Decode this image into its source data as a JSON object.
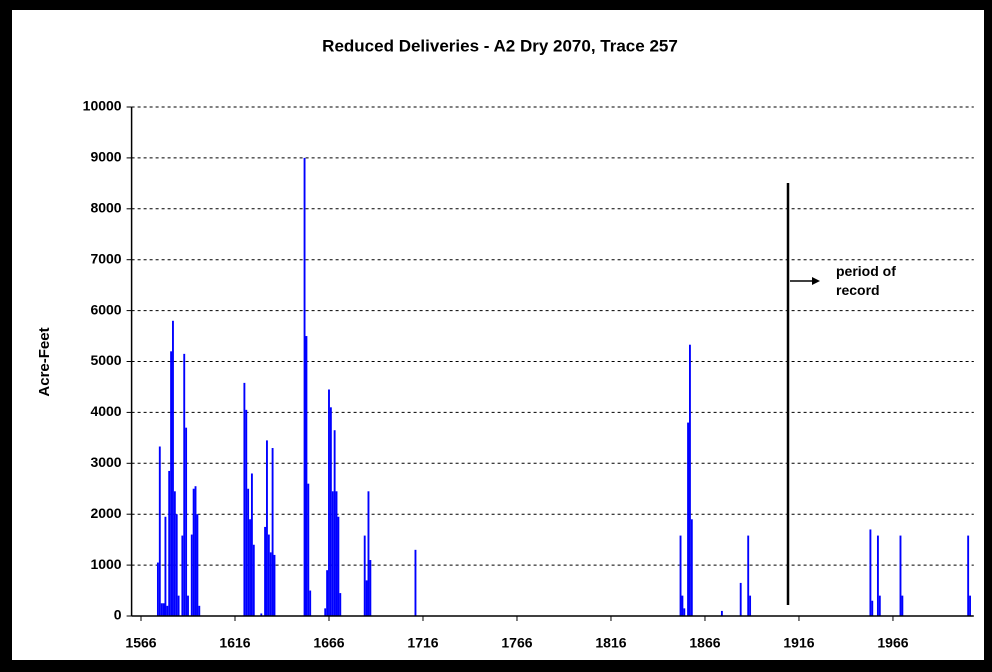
{
  "chart_data": {
    "type": "bar",
    "title": "Reduced Deliveries - A2 Dry 2070, Trace 257",
    "y_label": "Acre-Feet",
    "annotation": "period of record",
    "color": "#0000ff",
    "x": [
      1575,
      1576,
      1577,
      1578,
      1579,
      1580,
      1581,
      1582,
      1583,
      1584,
      1585,
      1586,
      1588,
      1589,
      1590,
      1591,
      1593,
      1594,
      1595,
      1596,
      1597,
      1621,
      1622,
      1623,
      1624,
      1625,
      1626,
      1630,
      1632,
      1633,
      1634,
      1635,
      1636,
      1637,
      1653,
      1654,
      1655,
      1656,
      1664,
      1665,
      1666,
      1667,
      1668,
      1669,
      1670,
      1671,
      1672,
      1685,
      1686,
      1687,
      1688,
      1712,
      1853,
      1854,
      1855,
      1857,
      1858,
      1859,
      1875,
      1885,
      1889,
      1890,
      1954,
      1955,
      1958,
      1959,
      1970,
      1971,
      2006,
      2007
    ],
    "values": [
      1050,
      3330,
      250,
      250,
      1950,
      200,
      2850,
      5200,
      5800,
      2450,
      2000,
      400,
      1580,
      5150,
      3700,
      400,
      1600,
      2500,
      2550,
      2000,
      200,
      4580,
      4050,
      2500,
      1900,
      2800,
      1400,
      50,
      1750,
      3450,
      1600,
      1250,
      3300,
      1200,
      9000,
      5500,
      2600,
      500,
      150,
      900,
      4450,
      4100,
      2450,
      3650,
      2450,
      1950,
      450,
      1580,
      700,
      2450,
      1100,
      1300,
      1580,
      400,
      150,
      3800,
      5330,
      1900,
      100,
      650,
      1580,
      400,
      1700,
      300,
      1580,
      400,
      1580,
      400,
      1580,
      400
    ],
    "xlim": [
      1561,
      2009
    ],
    "xticks": [
      1566,
      1616,
      1666,
      1716,
      1766,
      1816,
      1866,
      1916,
      1966
    ],
    "ylim": [
      0,
      10000
    ],
    "yticks": [
      0,
      1000,
      2000,
      3000,
      4000,
      5000,
      6000,
      7000,
      8000,
      9000,
      10000
    ],
    "grid": true
  }
}
